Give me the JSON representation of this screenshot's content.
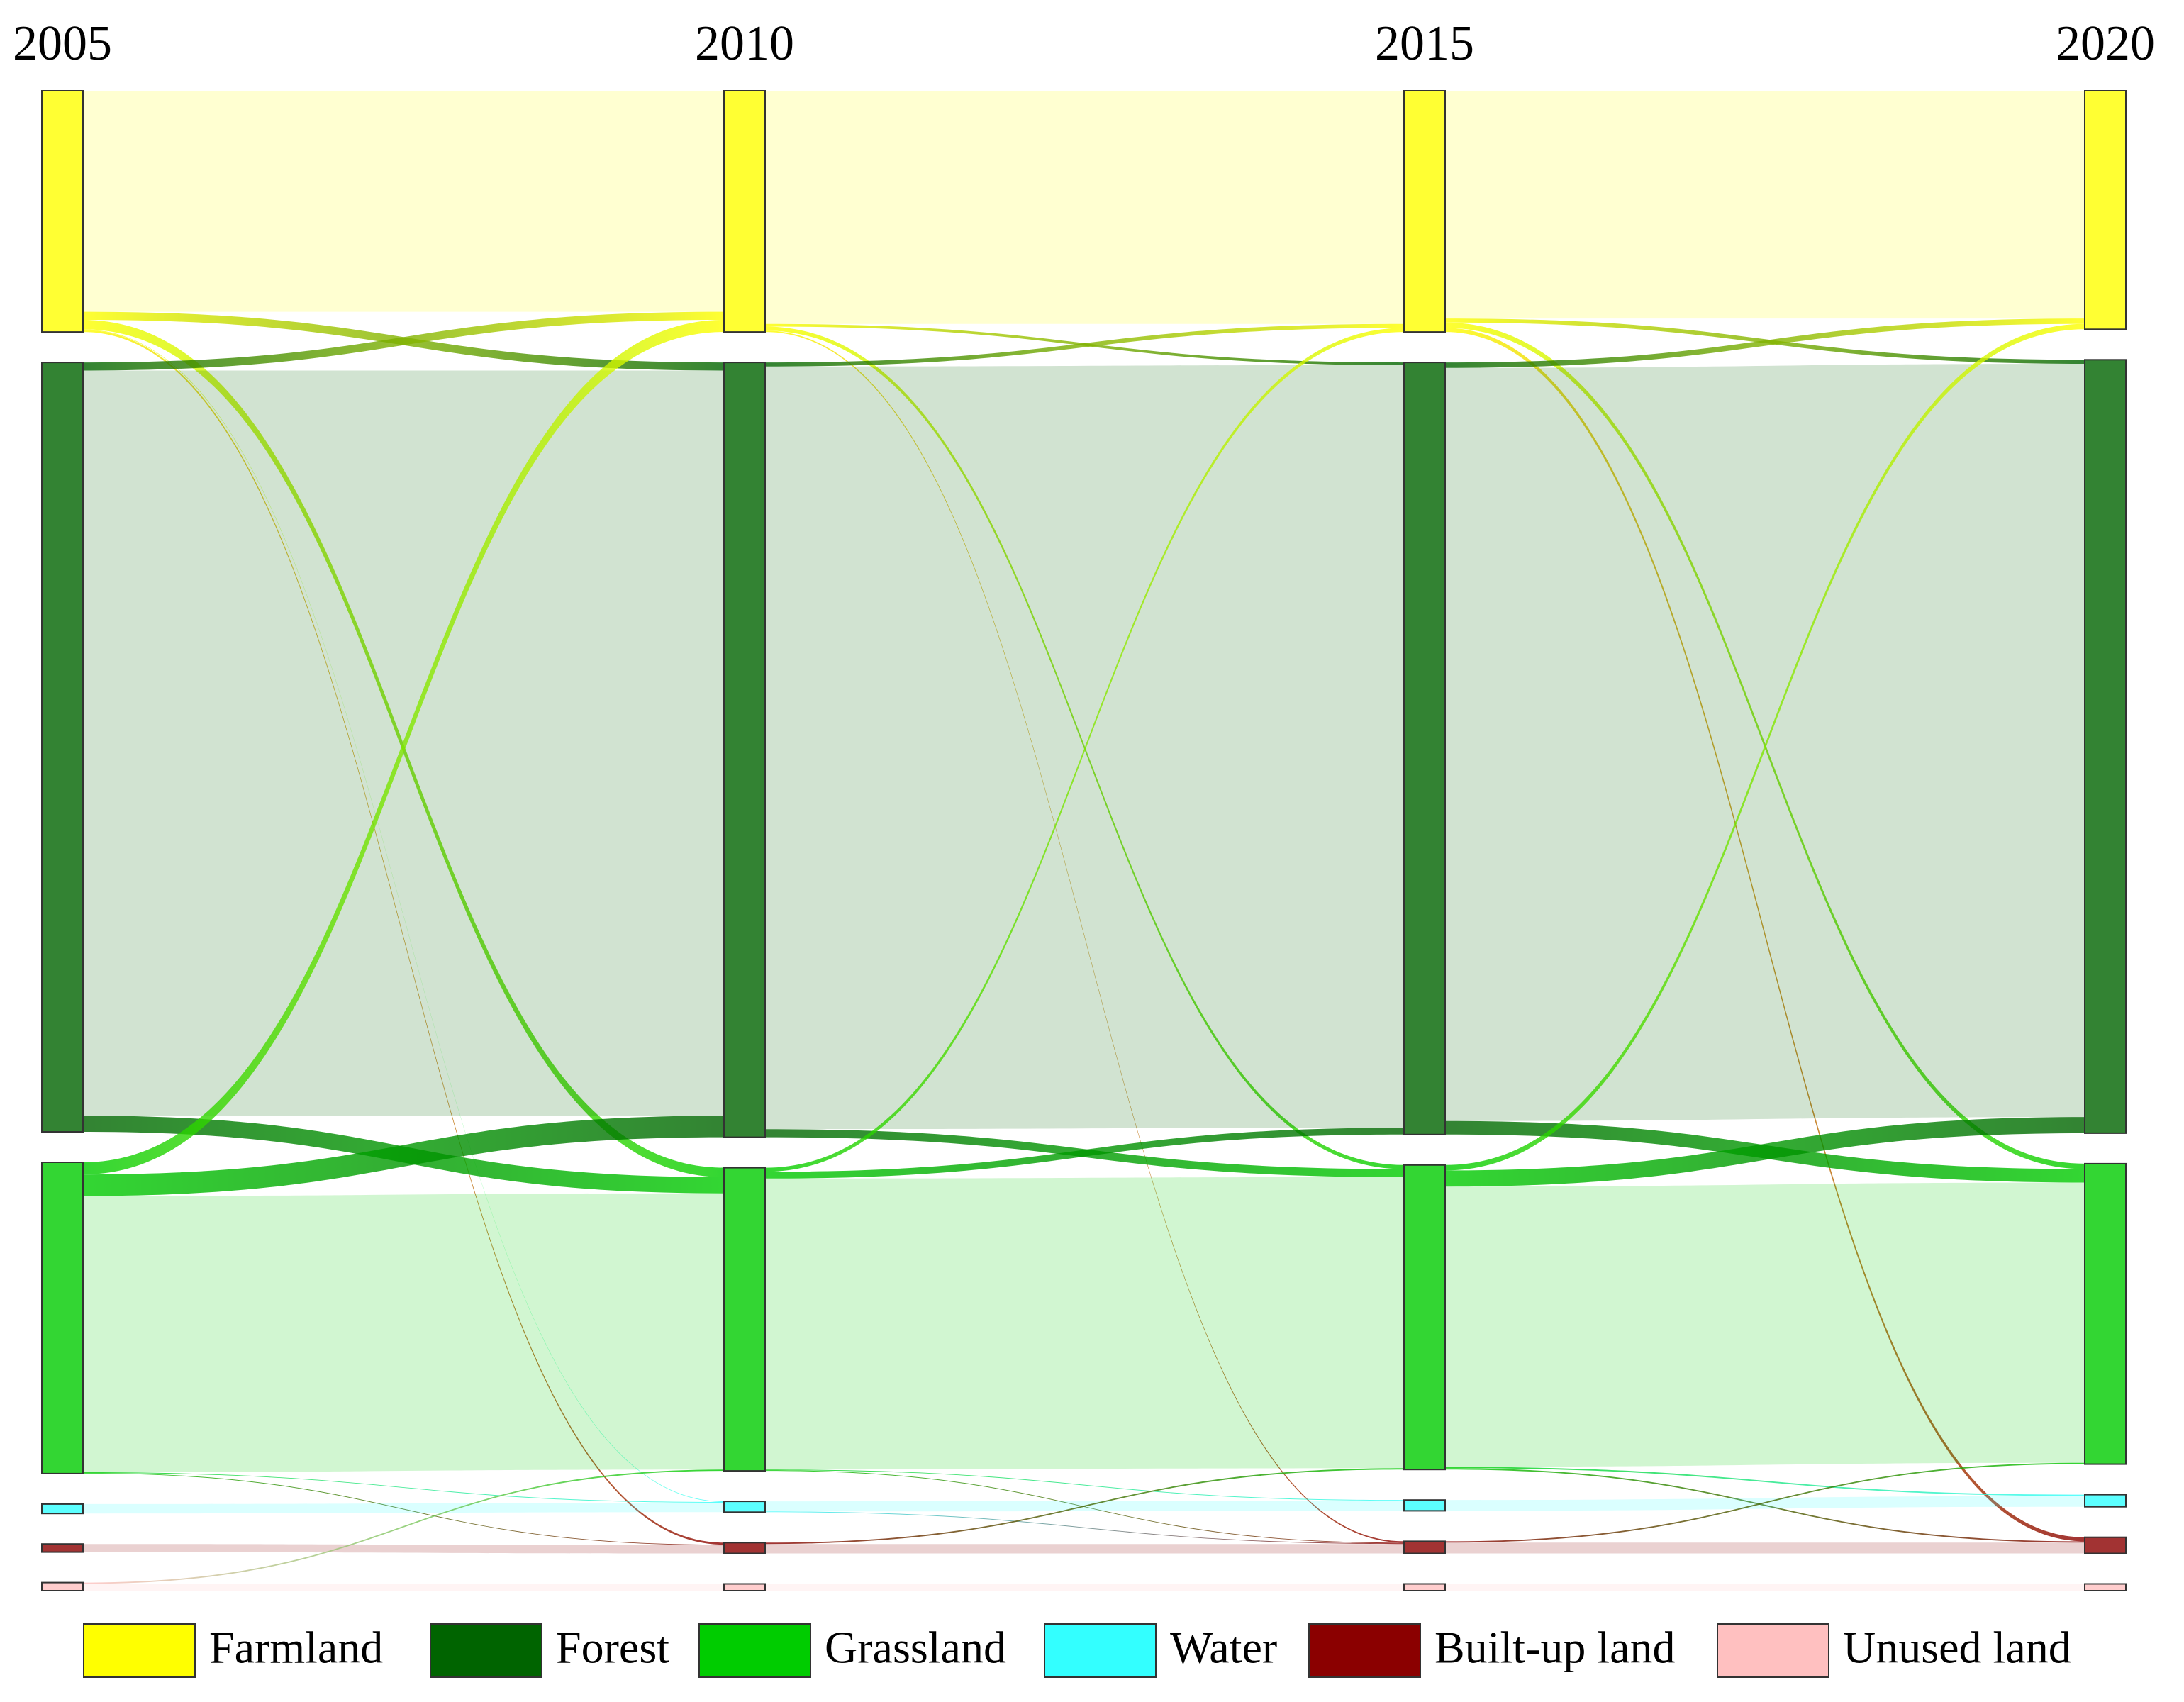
{
  "chart_data": {
    "type": "sankey",
    "stages": [
      "2005",
      "2010",
      "2015",
      "2020"
    ],
    "series": [
      {
        "name": "Farmland",
        "color": "#ffff00",
        "values": [
          17.9,
          17.9,
          17.9,
          17.7
        ]
      },
      {
        "name": "Forest",
        "color": "#006400",
        "values": [
          57.1,
          57.5,
          57.3,
          57.4
        ]
      },
      {
        "name": "Grassland",
        "color": "#00cc00",
        "values": [
          23.1,
          22.5,
          22.6,
          22.3
        ]
      },
      {
        "name": "Water",
        "color": "#33ffff",
        "values": [
          0.7,
          0.8,
          0.8,
          0.9
        ]
      },
      {
        "name": "Built-up land",
        "color": "#8b0000",
        "values": [
          0.6,
          0.8,
          0.9,
          1.2
        ]
      },
      {
        "name": "Unused land",
        "color": "#ffc0c0",
        "values": [
          0.6,
          0.5,
          0.5,
          0.5
        ]
      }
    ],
    "flows": [
      [
        {
          "from": "Farmland",
          "to": "Farmland",
          "value": 16.4
        },
        {
          "from": "Farmland",
          "to": "Forest",
          "value": 0.6
        },
        {
          "from": "Farmland",
          "to": "Grassland",
          "value": 0.7
        },
        {
          "from": "Farmland",
          "to": "Water",
          "value": 0.05
        },
        {
          "from": "Farmland",
          "to": "Built-up land",
          "value": 0.15
        },
        {
          "from": "Forest",
          "to": "Farmland",
          "value": 0.6
        },
        {
          "from": "Forest",
          "to": "Forest",
          "value": 55.3
        },
        {
          "from": "Forest",
          "to": "Grassland",
          "value": 1.2
        },
        {
          "from": "Grassland",
          "to": "Farmland",
          "value": 0.9
        },
        {
          "from": "Grassland",
          "to": "Forest",
          "value": 1.6
        },
        {
          "from": "Grassland",
          "to": "Grassland",
          "value": 20.5
        },
        {
          "from": "Grassland",
          "to": "Water",
          "value": 0.05
        },
        {
          "from": "Grassland",
          "to": "Built-up land",
          "value": 0.05
        },
        {
          "from": "Water",
          "to": "Water",
          "value": 0.7
        },
        {
          "from": "Built-up land",
          "to": "Built-up land",
          "value": 0.6
        },
        {
          "from": "Unused land",
          "to": "Grassland",
          "value": 0.1
        },
        {
          "from": "Unused land",
          "to": "Unused land",
          "value": 0.5
        }
      ],
      [
        {
          "from": "Farmland",
          "to": "Farmland",
          "value": 17.3
        },
        {
          "from": "Farmland",
          "to": "Forest",
          "value": 0.2
        },
        {
          "from": "Farmland",
          "to": "Grassland",
          "value": 0.3
        },
        {
          "from": "Farmland",
          "to": "Built-up land",
          "value": 0.1
        },
        {
          "from": "Forest",
          "to": "Farmland",
          "value": 0.3
        },
        {
          "from": "Forest",
          "to": "Forest",
          "value": 56.6
        },
        {
          "from": "Forest",
          "to": "Grassland",
          "value": 0.6
        },
        {
          "from": "Grassland",
          "to": "Farmland",
          "value": 0.3
        },
        {
          "from": "Grassland",
          "to": "Forest",
          "value": 0.5
        },
        {
          "from": "Grassland",
          "to": "Grassland",
          "value": 21.6
        },
        {
          "from": "Grassland",
          "to": "Water",
          "value": 0.05
        },
        {
          "from": "Grassland",
          "to": "Built-up land",
          "value": 0.05
        },
        {
          "from": "Water",
          "to": "Water",
          "value": 0.75
        },
        {
          "from": "Water",
          "to": "Built-up land",
          "value": 0.05
        },
        {
          "from": "Built-up land",
          "to": "Grassland",
          "value": 0.1
        },
        {
          "from": "Built-up land",
          "to": "Built-up land",
          "value": 0.7
        },
        {
          "from": "Unused land",
          "to": "Unused land",
          "value": 0.5
        }
      ],
      [
        {
          "from": "Farmland",
          "to": "Farmland",
          "value": 16.9
        },
        {
          "from": "Farmland",
          "to": "Forest",
          "value": 0.3
        },
        {
          "from": "Farmland",
          "to": "Grassland",
          "value": 0.4
        },
        {
          "from": "Farmland",
          "to": "Built-up land",
          "value": 0.3
        },
        {
          "from": "Forest",
          "to": "Farmland",
          "value": 0.4
        },
        {
          "from": "Forest",
          "to": "Forest",
          "value": 55.9
        },
        {
          "from": "Forest",
          "to": "Grassland",
          "value": 1.0
        },
        {
          "from": "Grassland",
          "to": "Farmland",
          "value": 0.4
        },
        {
          "from": "Grassland",
          "to": "Forest",
          "value": 1.2
        },
        {
          "from": "Grassland",
          "to": "Grassland",
          "value": 20.8
        },
        {
          "from": "Grassland",
          "to": "Water",
          "value": 0.1
        },
        {
          "from": "Grassland",
          "to": "Built-up land",
          "value": 0.1
        },
        {
          "from": "Water",
          "to": "Water",
          "value": 0.8
        },
        {
          "from": "Built-up land",
          "to": "Grassland",
          "value": 0.1
        },
        {
          "from": "Built-up land",
          "to": "Built-up land",
          "value": 0.8
        },
        {
          "from": "Unused land",
          "to": "Unused land",
          "value": 0.5
        }
      ]
    ]
  }
}
